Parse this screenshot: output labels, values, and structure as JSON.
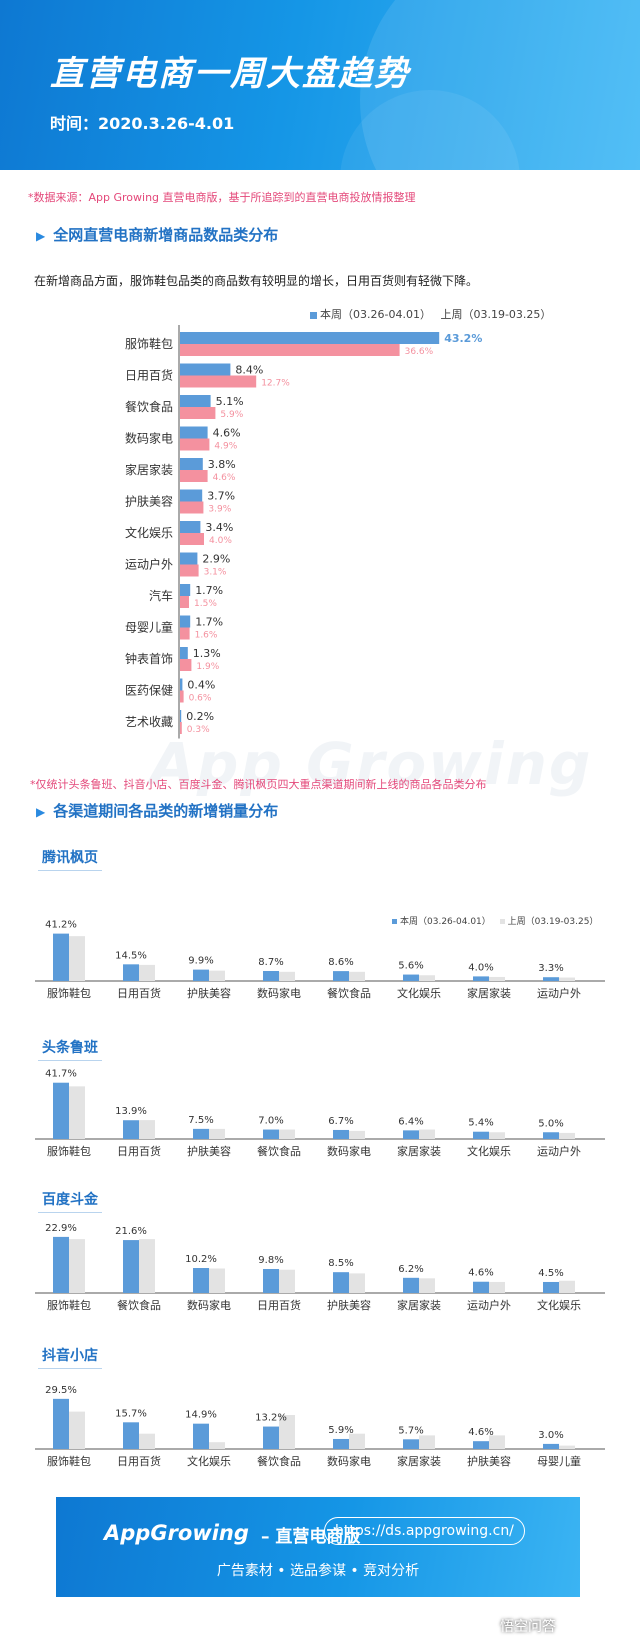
{
  "header": {
    "title": "直营电商一周大盘趋势",
    "period": "时间：2020.3.26-4.01"
  },
  "source_note": "*数据来源：App Growing 直营电商版，基于所追踪到的直营电商投放情报整理",
  "section1": {
    "title": "全网直营电商新增商品数品类分布",
    "description": "在新增商品方面，服饰鞋包品类的商品数有较明显的增长，日用百货则有轻微下降。"
  },
  "legend": {
    "this_week": "本周（03.26-04.01）",
    "last_week": "上周（03.19-03.25）"
  },
  "legend_small": {
    "this_week": "本周（03.26-04.01）",
    "last_week": "上周（03.19-03.25）"
  },
  "colors": {
    "this_week": "#5b9bd9",
    "last_week": "#f4919f",
    "last_week_gray": "#e3e3e3",
    "accent": "#2272c4",
    "note": "#e4487a"
  },
  "watermark": "App Growing",
  "note2": "*仅统计头条鲁班、抖音小店、百度斗金、腾讯枫页四大重点渠道期间新上线的商品各品类分布",
  "section2": {
    "title": "各渠道期间各品类的新增销量分布"
  },
  "chart_data": [
    {
      "type": "bar",
      "orientation": "horizontal",
      "categories": [
        "服饰鞋包",
        "日用百货",
        "餐饮食品",
        "数码家电",
        "家居家装",
        "护肤美容",
        "文化娱乐",
        "运动户外",
        "汽车",
        "母婴儿童",
        "钟表首饰",
        "医药保健",
        "艺术收藏"
      ],
      "series": [
        {
          "name": "本周（03.26-04.01）",
          "values": [
            43.2,
            8.4,
            5.1,
            4.6,
            3.8,
            3.7,
            3.4,
            2.9,
            1.7,
            1.7,
            1.3,
            0.4,
            0.2
          ],
          "labels": [
            "43.2%",
            "8.4%",
            "5.1%",
            "4.6%",
            "3.8%",
            "3.7%",
            "3.4%",
            "2.9%",
            "1.7%",
            "1.7%",
            "1.3%",
            "0.4%",
            "0.2%"
          ]
        },
        {
          "name": "上周（03.19-03.25）",
          "values": [
            36.6,
            12.7,
            5.9,
            4.9,
            4.6,
            3.9,
            4.0,
            3.1,
            1.5,
            1.6,
            1.9,
            0.6,
            0.3
          ],
          "labels": [
            "36.6%",
            "12.7%",
            "5.9%",
            "4.9%",
            "4.6%",
            "3.9%",
            "4.0%",
            "3.1%",
            "1.5%",
            "1.6%",
            "1.9%",
            "0.6%",
            "0.3%"
          ]
        }
      ]
    },
    {
      "type": "bar",
      "channel": "腾讯枫页",
      "categories": [
        "服饰鞋包",
        "日用百货",
        "护肤美容",
        "数码家电",
        "餐饮食品",
        "文化娱乐",
        "家居家装",
        "运动户外"
      ],
      "series": [
        {
          "name": "本周（03.26-04.01）",
          "values": [
            41.2,
            14.5,
            9.9,
            8.7,
            8.6,
            5.6,
            4.0,
            3.3
          ],
          "labels": [
            "41.2%",
            "14.5%",
            "9.9%",
            "8.7%",
            "8.6%",
            "5.6%",
            "4.0%",
            "3.3%"
          ]
        },
        {
          "name": "上周（03.19-03.25）",
          "values": [
            39,
            14,
            9,
            8,
            8,
            5,
            3.5,
            3
          ]
        }
      ]
    },
    {
      "type": "bar",
      "channel": "头条鲁班",
      "categories": [
        "服饰鞋包",
        "日用百货",
        "护肤美容",
        "餐饮食品",
        "数码家电",
        "家居家装",
        "文化娱乐",
        "运动户外"
      ],
      "series": [
        {
          "name": "本周（03.26-04.01）",
          "values": [
            41.7,
            13.9,
            7.5,
            7.0,
            6.7,
            6.4,
            5.4,
            5.0
          ],
          "labels": [
            "41.7%",
            "13.9%",
            "7.5%",
            "7.0%",
            "6.7%",
            "6.4%",
            "5.4%",
            "5.0%"
          ]
        },
        {
          "name": "上周（03.19-03.25）",
          "values": [
            39,
            14,
            7.5,
            7,
            6,
            7,
            5,
            4.5
          ]
        }
      ]
    },
    {
      "type": "bar",
      "channel": "百度斗金",
      "categories": [
        "服饰鞋包",
        "餐饮食品",
        "数码家电",
        "日用百货",
        "护肤美容",
        "家居家装",
        "运动户外",
        "文化娱乐"
      ],
      "series": [
        {
          "name": "本周（03.26-04.01）",
          "values": [
            22.9,
            21.6,
            10.2,
            9.8,
            8.5,
            6.2,
            4.6,
            4.5
          ],
          "labels": [
            "22.9%",
            "21.6%",
            "10.2%",
            "9.8%",
            "8.5%",
            "6.2%",
            "4.6%",
            "4.5%"
          ]
        },
        {
          "name": "上周（03.19-03.25）",
          "values": [
            22,
            22,
            10,
            9.5,
            8,
            6,
            4.5,
            5
          ]
        }
      ]
    },
    {
      "type": "bar",
      "channel": "抖音小店",
      "categories": [
        "服饰鞋包",
        "日用百货",
        "文化娱乐",
        "餐饮食品",
        "数码家电",
        "家居家装",
        "护肤美容",
        "母婴儿童"
      ],
      "series": [
        {
          "name": "本周（03.26-04.01）",
          "values": [
            29.5,
            15.7,
            14.9,
            13.2,
            5.9,
            5.7,
            4.6,
            3.0
          ],
          "labels": [
            "29.5%",
            "15.7%",
            "14.9%",
            "13.2%",
            "5.9%",
            "5.7%",
            "4.6%",
            "3.0%"
          ]
        },
        {
          "name": "上周（03.19-03.25）",
          "values": [
            22,
            9,
            4,
            20,
            9,
            8,
            8,
            2
          ]
        }
      ]
    }
  ],
  "footer": {
    "brand": "AppGrowing",
    "product": "– 直营电商版",
    "url": "https://ds.appgrowing.cn/",
    "tagline": "广告素材 • 选品参谋 • 竞对分析"
  },
  "corner_mark": "悟空问答"
}
